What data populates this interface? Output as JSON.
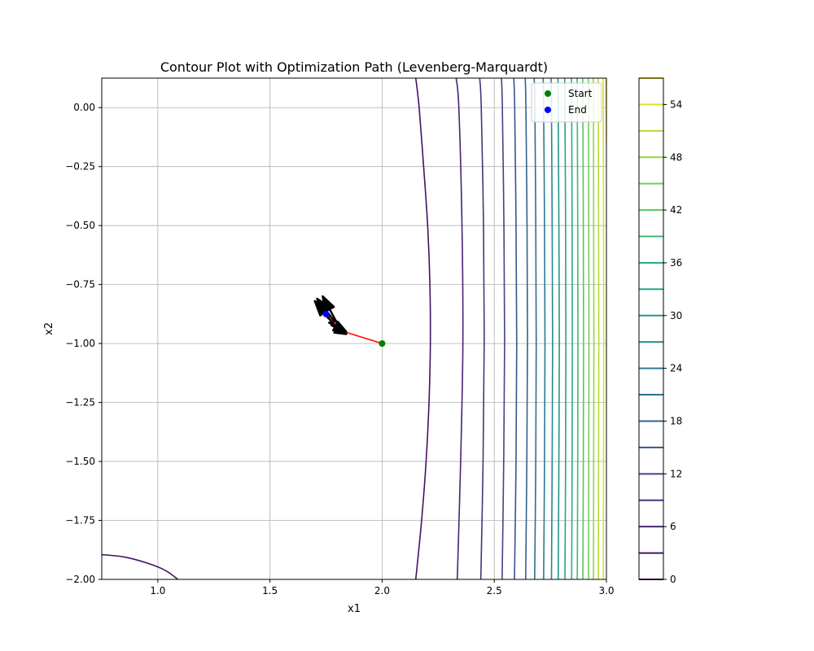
{
  "chart_data": {
    "type": "contour",
    "title": "Contour Plot with Optimization Path (Levenberg-Marquardt)",
    "xlabel": "x1",
    "ylabel": "x2",
    "xlim": [
      0.75,
      3.0
    ],
    "ylim": [
      -2.0,
      0.125
    ],
    "x_ticks": [
      "1.0",
      "1.5",
      "2.0",
      "2.5",
      "3.0"
    ],
    "y_ticks": [
      "0.00",
      "−0.25",
      "−0.50",
      "−0.75",
      "−1.00",
      "−1.25",
      "−1.50",
      "−1.75",
      "−2.00"
    ],
    "grid": true,
    "colormap": "viridis",
    "contour_levels": [
      0,
      3,
      6,
      9,
      12,
      15,
      18,
      21,
      24,
      27,
      30,
      33,
      36,
      39,
      42,
      45,
      48,
      51,
      54,
      57
    ],
    "colorbar_ticks": [
      "0",
      "6",
      "12",
      "18",
      "24",
      "30",
      "36",
      "42",
      "48",
      "54"
    ],
    "contour_lines": [
      {
        "level": 3,
        "points": [
          [
            0.75,
            -1.895
          ],
          [
            0.85,
            -1.905
          ],
          [
            0.95,
            -1.93
          ],
          [
            1.03,
            -1.96
          ],
          [
            1.09,
            -2.0
          ]
        ]
      },
      {
        "level": 3,
        "points": [
          [
            2.15,
            -2.0
          ],
          [
            2.176,
            -1.75
          ],
          [
            2.196,
            -1.5
          ],
          [
            2.209,
            -1.25
          ],
          [
            2.215,
            -1.0
          ],
          [
            2.213,
            -0.75
          ],
          [
            2.203,
            -0.5
          ],
          [
            2.185,
            -0.25
          ],
          [
            2.165,
            0.0
          ],
          [
            2.15,
            0.125
          ]
        ]
      },
      {
        "level": 6,
        "points": [
          [
            2.335,
            -2.0
          ],
          [
            2.35,
            -1.5
          ],
          [
            2.36,
            -1.0
          ],
          [
            2.356,
            -0.5
          ],
          [
            2.342,
            0.0
          ],
          [
            2.33,
            0.125
          ]
        ]
      },
      {
        "level": 9,
        "points": [
          [
            2.44,
            -2.0
          ],
          [
            2.45,
            -1.5
          ],
          [
            2.455,
            -1.0
          ],
          [
            2.452,
            -0.5
          ],
          [
            2.442,
            0.0
          ],
          [
            2.435,
            0.125
          ]
        ]
      },
      {
        "level": 12,
        "points": [
          [
            2.535,
            -2.0
          ],
          [
            2.542,
            -1.5
          ],
          [
            2.546,
            -1.0
          ],
          [
            2.543,
            -0.5
          ],
          [
            2.536,
            0.0
          ],
          [
            2.532,
            0.125
          ]
        ]
      },
      {
        "level": 15,
        "points": [
          [
            2.59,
            -2.0
          ],
          [
            2.597,
            -1.5
          ],
          [
            2.6,
            -1.0
          ],
          [
            2.597,
            -0.5
          ],
          [
            2.591,
            0.0
          ],
          [
            2.587,
            0.125
          ]
        ]
      },
      {
        "level": 18,
        "points": [
          [
            2.64,
            -2.0
          ],
          [
            2.645,
            -1.5
          ],
          [
            2.648,
            -1.0
          ],
          [
            2.646,
            -0.5
          ],
          [
            2.641,
            0.0
          ],
          [
            2.638,
            0.125
          ]
        ]
      },
      {
        "level": 21,
        "points": [
          [
            2.68,
            -2.0
          ],
          [
            2.685,
            -1.5
          ],
          [
            2.687,
            -1.0
          ],
          [
            2.685,
            -0.5
          ],
          [
            2.681,
            0.0
          ],
          [
            2.678,
            0.125
          ]
        ]
      },
      {
        "level": 24,
        "points": [
          [
            2.72,
            -2.0
          ],
          [
            2.724,
            -1.5
          ],
          [
            2.726,
            -1.0
          ],
          [
            2.724,
            -0.5
          ],
          [
            2.72,
            0.0
          ],
          [
            2.718,
            0.125
          ]
        ]
      },
      {
        "level": 27,
        "points": [
          [
            2.755,
            -2.0
          ],
          [
            2.758,
            -1.5
          ],
          [
            2.76,
            -1.0
          ],
          [
            2.758,
            -0.5
          ],
          [
            2.755,
            0.0
          ],
          [
            2.753,
            0.125
          ]
        ]
      },
      {
        "level": 30,
        "points": [
          [
            2.785,
            -2.0
          ],
          [
            2.788,
            -1.5
          ],
          [
            2.79,
            -1.0
          ],
          [
            2.788,
            -0.5
          ],
          [
            2.785,
            0.0
          ],
          [
            2.784,
            0.125
          ]
        ]
      },
      {
        "level": 33,
        "points": [
          [
            2.815,
            -2.0
          ],
          [
            2.818,
            -1.5
          ],
          [
            2.819,
            -1.0
          ],
          [
            2.818,
            -0.5
          ],
          [
            2.815,
            0.0
          ],
          [
            2.814,
            0.125
          ]
        ]
      },
      {
        "level": 36,
        "points": [
          [
            2.845,
            -2.0
          ],
          [
            2.847,
            -1.5
          ],
          [
            2.848,
            -1.0
          ],
          [
            2.847,
            -0.5
          ],
          [
            2.845,
            0.0
          ],
          [
            2.844,
            0.125
          ]
        ]
      },
      {
        "level": 39,
        "points": [
          [
            2.87,
            -2.0
          ],
          [
            2.872,
            -1.5
          ],
          [
            2.873,
            -1.0
          ],
          [
            2.872,
            -0.5
          ],
          [
            2.87,
            0.0
          ],
          [
            2.869,
            0.125
          ]
        ]
      },
      {
        "level": 42,
        "points": [
          [
            2.895,
            -2.0
          ],
          [
            2.897,
            -1.5
          ],
          [
            2.898,
            -1.0
          ],
          [
            2.897,
            -0.5
          ],
          [
            2.895,
            0.0
          ],
          [
            2.894,
            0.125
          ]
        ]
      },
      {
        "level": 45,
        "points": [
          [
            2.92,
            -2.0
          ],
          [
            2.921,
            -1.5
          ],
          [
            2.922,
            -1.0
          ],
          [
            2.921,
            -0.5
          ],
          [
            2.92,
            0.0
          ],
          [
            2.919,
            0.125
          ]
        ]
      },
      {
        "level": 48,
        "points": [
          [
            2.942,
            -2.0
          ],
          [
            2.943,
            -1.5
          ],
          [
            2.944,
            -1.0
          ],
          [
            2.943,
            -0.5
          ],
          [
            2.942,
            0.0
          ],
          [
            2.941,
            0.125
          ]
        ]
      },
      {
        "level": 51,
        "points": [
          [
            2.964,
            -2.0
          ],
          [
            2.965,
            -1.5
          ],
          [
            2.966,
            -1.0
          ],
          [
            2.965,
            -0.5
          ],
          [
            2.964,
            0.0
          ],
          [
            2.963,
            0.125
          ]
        ]
      },
      {
        "level": 54,
        "points": [
          [
            2.986,
            -2.0
          ],
          [
            2.987,
            -1.5
          ],
          [
            2.988,
            -1.0
          ],
          [
            2.987,
            -0.5
          ],
          [
            2.986,
            0.0
          ],
          [
            2.985,
            0.125
          ]
        ]
      },
      {
        "level": 57,
        "points": [
          [
            3.0,
            -0.15
          ],
          [
            2.998,
            0.0
          ],
          [
            2.997,
            0.125
          ]
        ]
      }
    ],
    "path": {
      "points": [
        [
          2.0,
          -1.0
        ],
        [
          1.83,
          -0.95
        ],
        [
          1.76,
          -0.89
        ],
        [
          1.75,
          -0.875
        ]
      ],
      "color": "#ff0000"
    },
    "arrows": [
      {
        "from": [
          1.8,
          -0.915
        ],
        "to": [
          1.735,
          -0.8
        ]
      },
      {
        "from": [
          1.79,
          -0.91
        ],
        "to": [
          1.71,
          -0.81
        ]
      },
      {
        "from": [
          1.785,
          -0.92
        ],
        "to": [
          1.7,
          -0.82
        ]
      },
      {
        "from": [
          1.77,
          -0.92
        ],
        "to": [
          1.84,
          -0.96
        ]
      },
      {
        "from": [
          1.76,
          -0.91
        ],
        "to": [
          1.84,
          -0.95
        ]
      }
    ],
    "markers": [
      {
        "name": "Start",
        "x": 2.0,
        "y": -1.0,
        "color": "#008000"
      },
      {
        "name": "End",
        "x": 1.75,
        "y": -0.875,
        "color": "#0000ff"
      }
    ],
    "legend": {
      "position": "top-right",
      "entries": [
        {
          "label": "Start",
          "color": "#008000"
        },
        {
          "label": "End",
          "color": "#0000ff"
        }
      ]
    }
  }
}
